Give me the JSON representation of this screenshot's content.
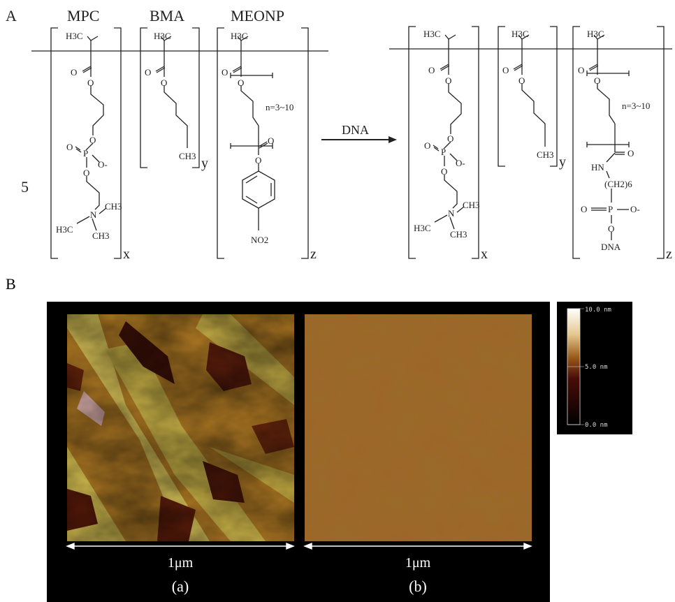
{
  "panel_labels": {
    "a": "A",
    "b": "B"
  },
  "monomers": {
    "mpc": "MPC",
    "bma": "BMA",
    "meonp": "MEONP"
  },
  "reaction_arrow_label": "DNA",
  "side_number": "5",
  "subscripts": {
    "x": "x",
    "y": "y",
    "z": "z"
  },
  "repeat_range": "n=3~10",
  "atoms": {
    "h3c": "H3C",
    "o": "O",
    "p": "P",
    "n": "N",
    "o_minus": "O-",
    "ch3": "CH3",
    "no2": "NO2",
    "hn": "HN",
    "ch2_6": "(CH2)6",
    "dna": "DNA"
  },
  "afm": {
    "scale_bar_label": "1μm",
    "images": [
      {
        "caption": "(a)"
      },
      {
        "caption": "(b)"
      }
    ],
    "colorbar": {
      "max_label": "10.0 nm",
      "mid_label": "5.0 nm",
      "min_label": "0.0 nm"
    },
    "colors": {
      "dark": "#2a0a08",
      "mid": "#8a4a10",
      "light": "#d6c25a",
      "white": "#ffffff"
    }
  }
}
